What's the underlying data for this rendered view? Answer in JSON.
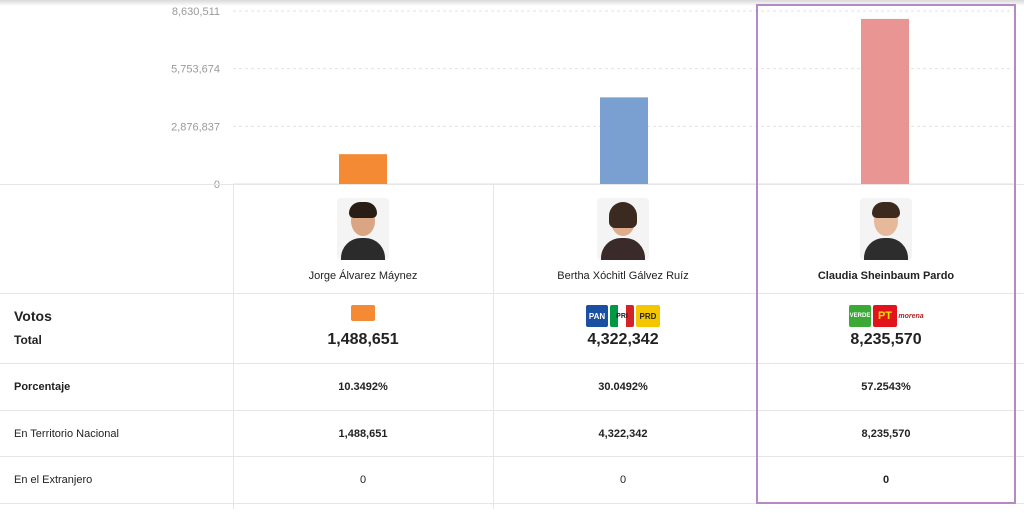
{
  "chart_data": {
    "type": "bar",
    "categories": [
      "Jorge Álvarez Máynez",
      "Bertha Xóchitl Gálvez Ruíz",
      "Claudia Sheinbaum Pardo"
    ],
    "values": [
      1488651,
      4322342,
      8235570
    ],
    "colors": [
      "#f58a34",
      "#7a9fd1",
      "#e89594"
    ],
    "yticks": [
      "0",
      "2,876,837",
      "5,753,674",
      "8,630,511"
    ],
    "ytick_values": [
      0,
      2876837,
      5753674,
      8630511
    ],
    "ylim": [
      0,
      8630511
    ]
  },
  "table": {
    "votos_label": "Votos",
    "total_label": "Total",
    "rows": [
      {
        "label": "Porcentaje",
        "values": [
          "10.3492%",
          "30.0492%",
          "57.2543%"
        ]
      },
      {
        "label": "En Territorio Nacional",
        "values": [
          "1,488,651",
          "4,322,342",
          "8,235,570"
        ]
      },
      {
        "label": "En el Extranjero",
        "values": [
          "0",
          "0",
          "0"
        ]
      }
    ]
  },
  "candidates": [
    {
      "name": "Jorge Álvarez Máynez",
      "total": "1,488,651",
      "parties": [
        {
          "icon": "movimiento-ciudadano-logo",
          "color": "#f58a34",
          "text": ""
        }
      ]
    },
    {
      "name": "Bertha Xóchitl Gálvez Ruíz",
      "total": "4,322,342",
      "parties": [
        {
          "icon": "pan-logo",
          "color": "#1a4fa1",
          "text": "PAN"
        },
        {
          "icon": "pri-logo",
          "color": "#d2232a",
          "text": "PRI"
        },
        {
          "icon": "prd-logo",
          "color": "#f3c600",
          "text": "PRD"
        }
      ]
    },
    {
      "name": "Claudia Sheinbaum Pardo",
      "total": "8,235,570",
      "parties": [
        {
          "icon": "verde-logo",
          "color": "#3aa935",
          "text": "VERDE"
        },
        {
          "icon": "pt-logo",
          "color": "#e3131b",
          "text": "PT"
        },
        {
          "icon": "morena-logo",
          "color": "#ffffff",
          "text": "morena"
        }
      ]
    }
  ]
}
